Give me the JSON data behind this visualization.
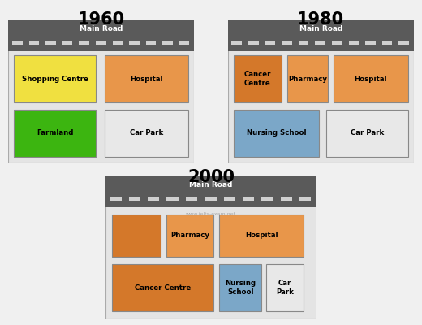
{
  "title_1960": "1960",
  "title_1980": "1980",
  "title_2000": "2000",
  "road_label": "Main Road",
  "watermark": "www.ielts-exam.net",
  "colors": {
    "orange": "#E8964A",
    "orange_dark": "#D4782A",
    "yellow": "#F0E040",
    "green": "#3CB510",
    "blue": "#7BA7C8",
    "lightgray": "#E8E8E8",
    "road": "#5A5A5A",
    "panel_bg": "#E4E4E4",
    "fig_bg": "#F0F0F0"
  },
  "layout": {
    "fig_w": 5.2,
    "fig_h": 4.0,
    "dpi": 100
  }
}
